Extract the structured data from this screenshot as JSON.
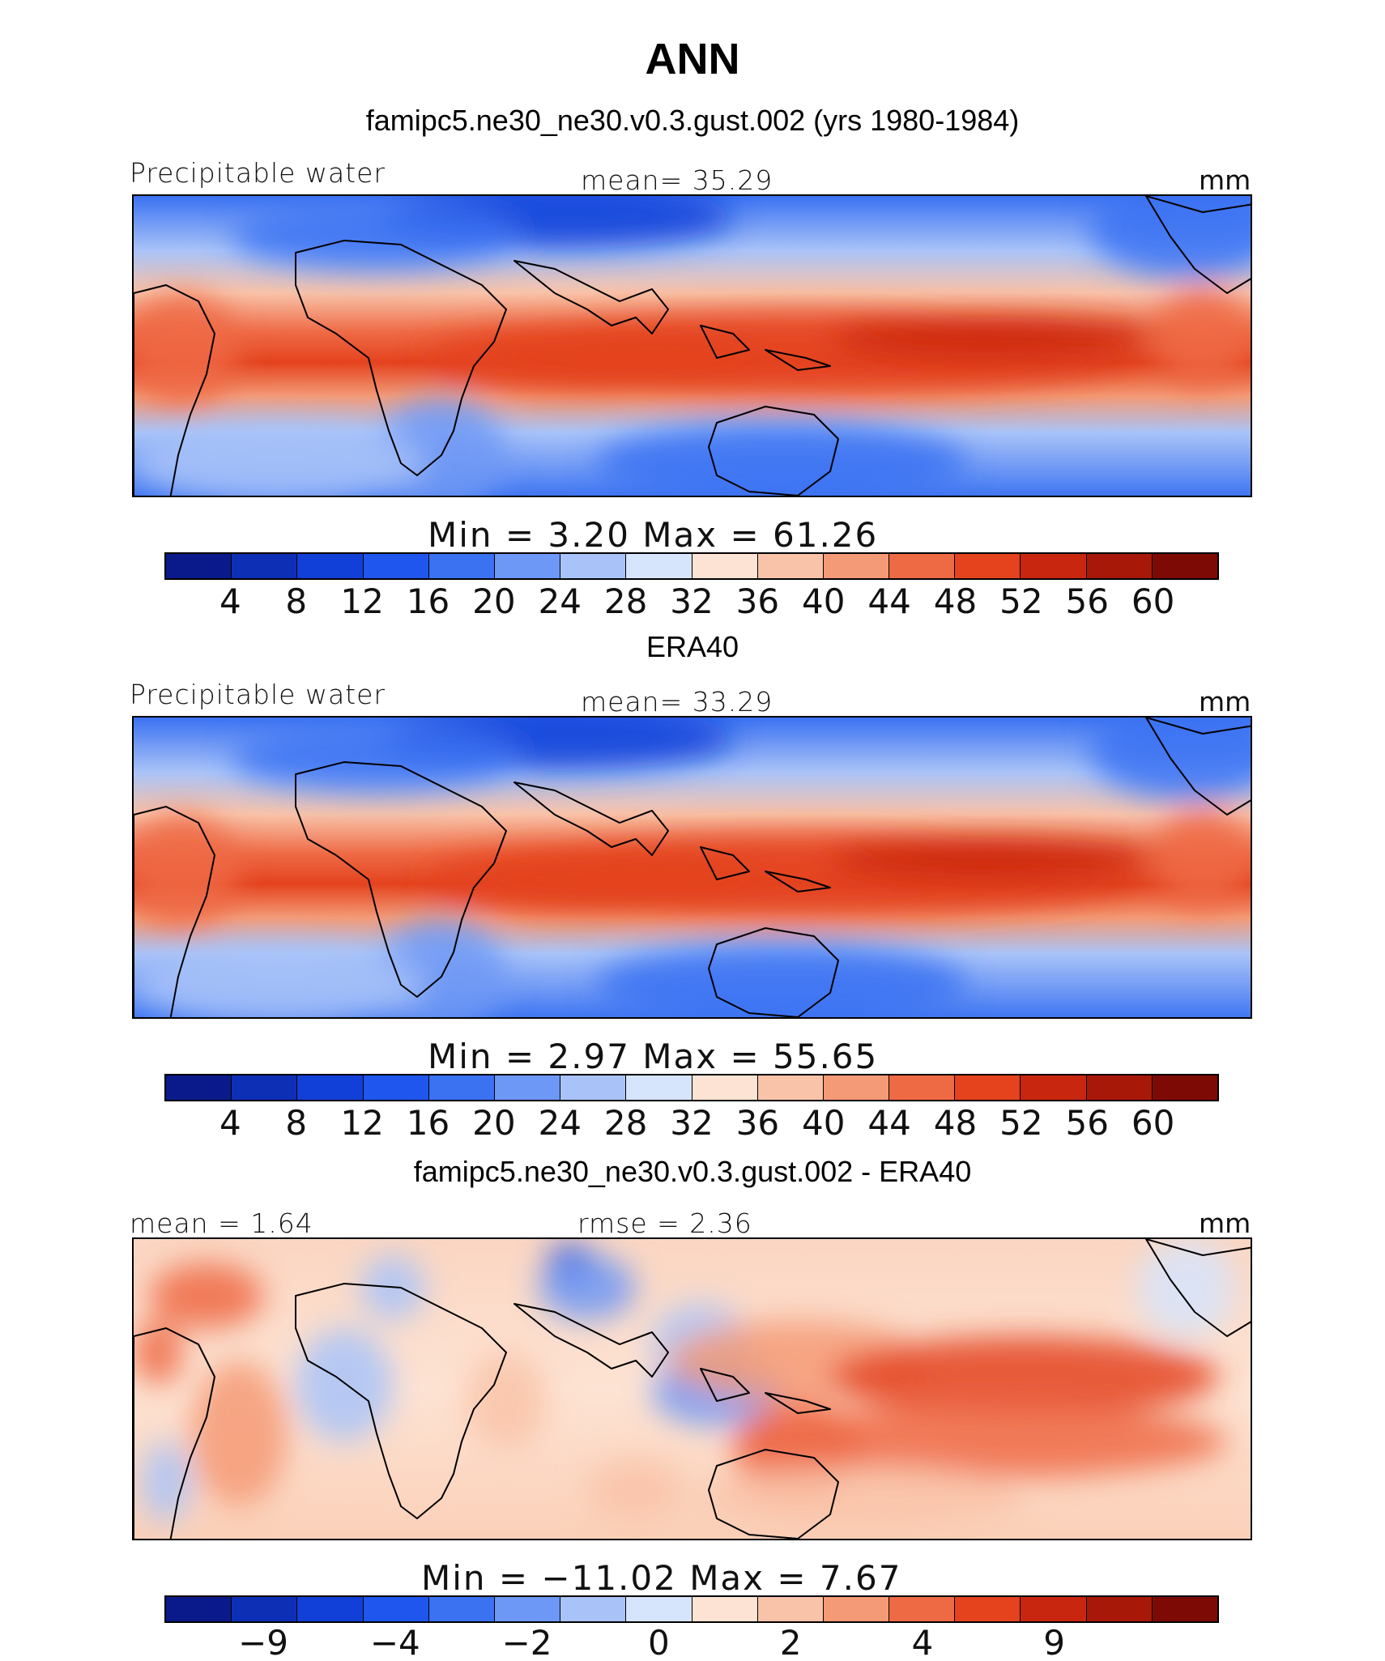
{
  "figure": {
    "title": "ANN",
    "colors": {
      "precip_scale": [
        "#0a1a8a",
        "#0c2fb5",
        "#1140d8",
        "#1f56ee",
        "#3b72f2",
        "#6e98f5",
        "#a9c3f8",
        "#d6e4fc",
        "#fde3d3",
        "#f9c3a9",
        "#f49a76",
        "#ee6a45",
        "#e4431e",
        "#c9260f",
        "#a81808",
        "#7d0a05"
      ],
      "diff_scale": [
        "#0a1a8a",
        "#0c2fb5",
        "#1140d8",
        "#1f56ee",
        "#3b72f2",
        "#6e98f5",
        "#a9c3f8",
        "#d6e4fc",
        "#fde3d3",
        "#f9c3a9",
        "#f49a76",
        "#ee6a45",
        "#e4431e",
        "#c9260f",
        "#a81808",
        "#7d0a05"
      ]
    }
  },
  "chart_data": [
    {
      "type": "heatmap",
      "panel_title": "famipc5.ne30_ne30.v0.3.gust.002 (yrs 1980-1984)",
      "left_label": "Precipitable water",
      "center_label": "mean=   35.29",
      "units": "mm",
      "stats": "Min  =    3.20  Max  =   61.26",
      "min": 3.2,
      "max": 61.26,
      "mean": 35.29,
      "colorbar_ticks": [
        "4",
        "8",
        "12",
        "16",
        "20",
        "24",
        "28",
        "32",
        "36",
        "40",
        "44",
        "48",
        "52",
        "56",
        "60"
      ],
      "colorbar_levels": [
        4,
        8,
        12,
        16,
        20,
        24,
        28,
        32,
        36,
        40,
        44,
        48,
        52,
        56,
        60
      ]
    },
    {
      "type": "heatmap",
      "panel_title": "ERA40",
      "left_label": "Precipitable water",
      "center_label": "mean=   33.29",
      "units": "mm",
      "stats": "Min  =    2.97  Max  =   55.65",
      "min": 2.97,
      "max": 55.65,
      "mean": 33.29,
      "colorbar_ticks": [
        "4",
        "8",
        "12",
        "16",
        "20",
        "24",
        "28",
        "32",
        "36",
        "40",
        "44",
        "48",
        "52",
        "56",
        "60"
      ],
      "colorbar_levels": [
        4,
        8,
        12,
        16,
        20,
        24,
        28,
        32,
        36,
        40,
        44,
        48,
        52,
        56,
        60
      ]
    },
    {
      "type": "heatmap",
      "panel_title": "famipc5.ne30_ne30.v0.3.gust.002 - ERA40",
      "left_label": "mean  =    1.64",
      "center_label": "rmse  =    2.36",
      "units": "mm",
      "stats": "Min  = −11.02  Max  =     7.67",
      "min": -11.02,
      "max": 7.67,
      "mean": 1.64,
      "rmse": 2.36,
      "colorbar_ticks": [
        "−9",
        "−4",
        "−2",
        "0",
        "2",
        "4",
        "9"
      ],
      "colorbar_levels": [
        -9,
        -4,
        -2,
        0,
        2,
        4,
        9
      ]
    }
  ]
}
